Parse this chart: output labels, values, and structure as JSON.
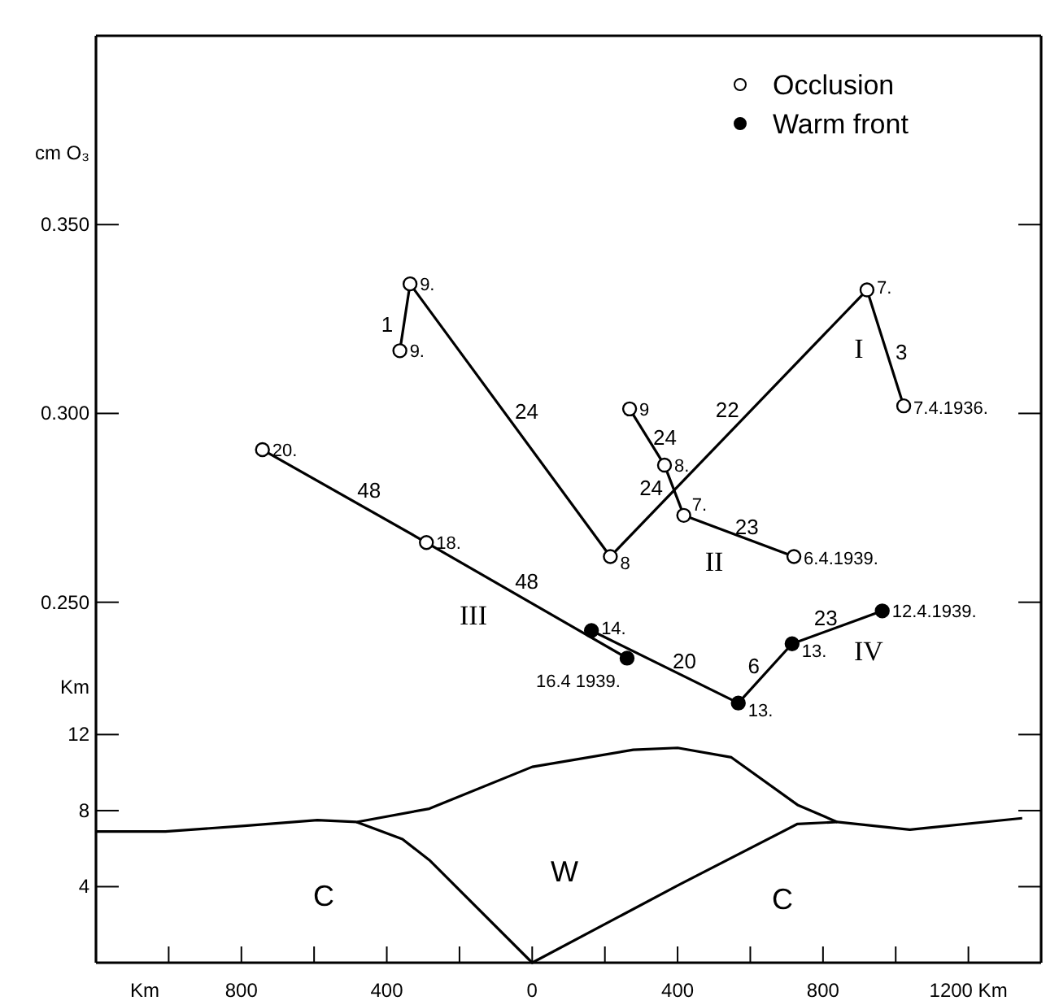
{
  "chart_data": [
    {
      "type": "line",
      "ylabel": "cm O₃",
      "xlim": [
        -1200,
        1400
      ],
      "ylim": [
        0.22,
        0.4
      ],
      "yticks": [
        {
          "value": 0.25,
          "label": "0.250"
        },
        {
          "value": 0.3,
          "label": "0.300"
        },
        {
          "value": 0.35,
          "label": "0.350"
        }
      ],
      "tick_labels": "y",
      "legend": "top right",
      "series": [
        {
          "color": "#000000",
          "marker": "none",
          "x": [
            -364,
            -336,
            215,
            921,
            1022
          ],
          "values": [
            0.3166,
            0.3343,
            0.2621,
            0.3327,
            0.302
          ]
        },
        {
          "color": "#000000",
          "marker": "none",
          "x": [
            268,
            364,
            417,
            720
          ],
          "values": [
            0.3012,
            0.2863,
            0.273,
            0.2621
          ]
        },
        {
          "color": "#000000",
          "marker": "none",
          "x": [
            -742,
            -291,
            261
          ],
          "values": [
            0.2904,
            0.2658,
            0.2352
          ]
        },
        {
          "color": "#000000",
          "marker": "none",
          "x": [
            163,
            567,
            715,
            963
          ],
          "values": [
            0.2425,
            0.2233,
            0.239,
            0.2477
          ]
        },
        {
          "type": "scatter",
          "name": "Occlusion",
          "color": "#ffffff",
          "marker": "circle",
          "x": [
            -364,
            -336,
            215,
            921,
            1022,
            268,
            364,
            417,
            720,
            -742,
            -291
          ],
          "values": [
            0.3166,
            0.3343,
            0.2621,
            0.3327,
            0.302,
            0.3012,
            0.2863,
            0.273,
            0.2621,
            0.2904,
            0.2658
          ]
        },
        {
          "type": "scatter",
          "name": "Warm front",
          "color": "#000000",
          "marker": "circle",
          "x": [
            261,
            163,
            567,
            715,
            963
          ],
          "values": [
            0.2352,
            0.2425,
            0.2233,
            0.239,
            0.2477
          ]
        }
      ],
      "annotations": [
        {
          "text": "9.",
          "x": -364,
          "y": 0.3166
        },
        {
          "text": "9.",
          "x": -336,
          "y": 0.3343
        },
        {
          "text": "8",
          "x": 215,
          "y": 0.2621
        },
        {
          "text": "7.",
          "x": 921,
          "y": 0.3327
        },
        {
          "text": "7.4.1936.",
          "x": 1022,
          "y": 0.302
        },
        {
          "text": "9",
          "x": 268,
          "y": 0.3012
        },
        {
          "text": "8.",
          "x": 364,
          "y": 0.2863
        },
        {
          "text": "7.",
          "x": 417,
          "y": 0.273
        },
        {
          "text": "6.4.1939.",
          "x": 720,
          "y": 0.2621
        },
        {
          "text": "20.",
          "x": -742,
          "y": 0.2904
        },
        {
          "text": "18.",
          "x": -291,
          "y": 0.2658
        },
        {
          "text": "16.4 1939.",
          "x": 261,
          "y": 0.2352
        },
        {
          "text": "14.",
          "x": 163,
          "y": 0.2425
        },
        {
          "text": "13.",
          "x": 567,
          "y": 0.2233
        },
        {
          "text": "13.",
          "x": 715,
          "y": 0.239
        },
        {
          "text": "12.4.1939.",
          "x": 963,
          "y": 0.2477
        },
        {
          "text": "1",
          "x": -350,
          "y": 0.3255
        },
        {
          "text": "24",
          "x": -60,
          "y": 0.2982
        },
        {
          "text": "22",
          "x": 568,
          "y": 0.2974
        },
        {
          "text": "3",
          "x": 971,
          "y": 0.3174
        },
        {
          "text": "24",
          "x": 316,
          "y": 0.2938
        },
        {
          "text": "24",
          "x": 390,
          "y": 0.2797
        },
        {
          "text": "23",
          "x": 568,
          "y": 0.2676
        },
        {
          "text": "48",
          "x": -516,
          "y": 0.2781
        },
        {
          "text": "48",
          "x": -15,
          "y": 0.2505
        },
        {
          "text": "20",
          "x": 365,
          "y": 0.2329
        },
        {
          "text": "6",
          "x": 641,
          "y": 0.2312
        },
        {
          "text": "23",
          "x": 839,
          "y": 0.2434
        },
        "I",
        "II",
        "III",
        "IV"
      ]
    },
    {
      "type": "line",
      "ylabel": "Km",
      "xlabel": "Km",
      "xlim": [
        -1200,
        1400
      ],
      "ylim": [
        0,
        13
      ],
      "yticks": [
        4,
        8,
        12
      ],
      "xticks": [
        {
          "value": -1000,
          "label": null
        },
        {
          "value": -800,
          "label": "800"
        },
        {
          "value": -600,
          "label": null
        },
        {
          "value": -400,
          "label": "400"
        },
        {
          "value": -200,
          "label": null
        },
        0,
        {
          "value": 200,
          "label": null
        },
        400,
        {
          "value": 600,
          "label": null
        },
        800,
        {
          "value": 1000,
          "label": null
        },
        {
          "value": 1200,
          "label": "1200 Km"
        }
      ],
      "series": [
        {
          "color": "#000000",
          "x": [
            -1200,
            -1009,
            -791,
            -591,
            -483,
            -283,
            0,
            278,
            400,
            548,
            730,
            839,
            1039,
            1348
          ],
          "values": [
            6.9,
            6.9,
            7.2,
            7.5,
            7.4,
            8.1,
            10.3,
            11.2,
            11.3,
            10.8,
            8.3,
            7.4,
            7.0,
            7.6
          ]
        },
        {
          "color": "#000000",
          "x": [
            -483,
            -357,
            -283,
            0,
            404,
            730,
            839
          ],
          "values": [
            7.4,
            6.5,
            5.4,
            0,
            4.1,
            7.3,
            7.4
          ]
        }
      ],
      "annotations": [
        "C",
        "W",
        "C"
      ]
    }
  ]
}
